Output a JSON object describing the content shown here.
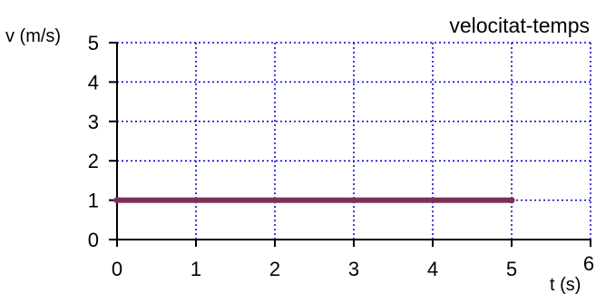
{
  "chart_data": {
    "type": "line",
    "title": "velocitat-temps",
    "xlabel": "t (s)",
    "ylabel": "v (m/s)",
    "xlim": [
      0,
      6
    ],
    "ylim": [
      0,
      5
    ],
    "x_ticks": [
      "0",
      "1",
      "2",
      "3",
      "4",
      "5",
      "6"
    ],
    "y_ticks": [
      "0",
      "1",
      "2",
      "3",
      "4",
      "5"
    ],
    "grid": true,
    "series": [
      {
        "x": [
          0,
          5
        ],
        "y": [
          1,
          1
        ]
      }
    ],
    "colors": {
      "line": "#7d2e58",
      "grid": "#0000cc",
      "axes": "#000000"
    }
  }
}
